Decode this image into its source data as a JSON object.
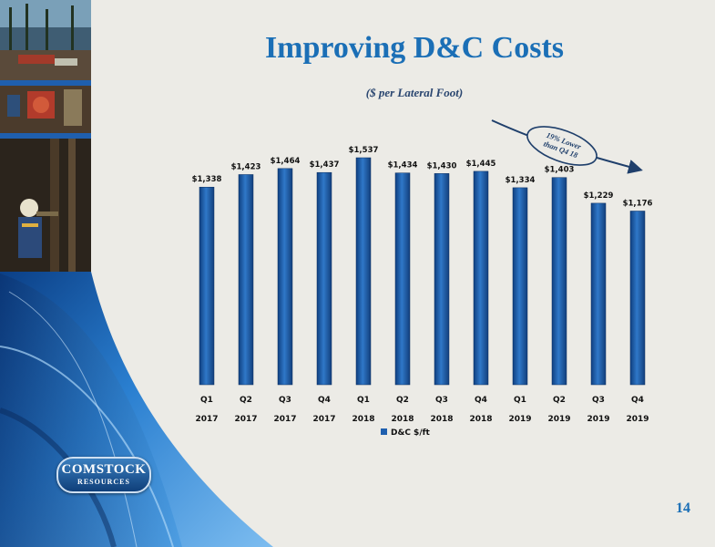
{
  "slide": {
    "title": "Improving D&C Costs",
    "subtitle": "($ per Lateral Foot)",
    "page_number": "14"
  },
  "logo": {
    "line1": "COMSTOCK",
    "line2": "RESOURCES"
  },
  "colors": {
    "title": "#1b6fb6",
    "bar": "#1f5fae",
    "annotation": "#1f3f6b"
  },
  "chart_data": {
    "type": "bar",
    "categories": [
      [
        "Q1",
        "2017"
      ],
      [
        "Q2",
        "2017"
      ],
      [
        "Q3",
        "2017"
      ],
      [
        "Q4",
        "2017"
      ],
      [
        "Q1",
        "2018"
      ],
      [
        "Q2",
        "2018"
      ],
      [
        "Q3",
        "2018"
      ],
      [
        "Q4",
        "2018"
      ],
      [
        "Q1",
        "2019"
      ],
      [
        "Q2",
        "2019"
      ],
      [
        "Q3",
        "2019"
      ],
      [
        "Q4",
        "2019"
      ]
    ],
    "series": [
      {
        "name": "D&C $/ft",
        "values": [
          1338,
          1423,
          1464,
          1437,
          1537,
          1434,
          1430,
          1445,
          1334,
          1403,
          1229,
          1176
        ],
        "labels": [
          "$1,338",
          "$1,423",
          "$1,464",
          "$1,437",
          "$1,537",
          "$1,434",
          "$1,430",
          "$1,445",
          "$1,334",
          "$1,403",
          "$1,229",
          "$1,176"
        ]
      }
    ],
    "ylim": [
      0,
      1600
    ],
    "grid": false,
    "legend": "bottom",
    "annotation": {
      "text_line1": "19% Lower",
      "text_line2": "than Q4 18"
    }
  }
}
